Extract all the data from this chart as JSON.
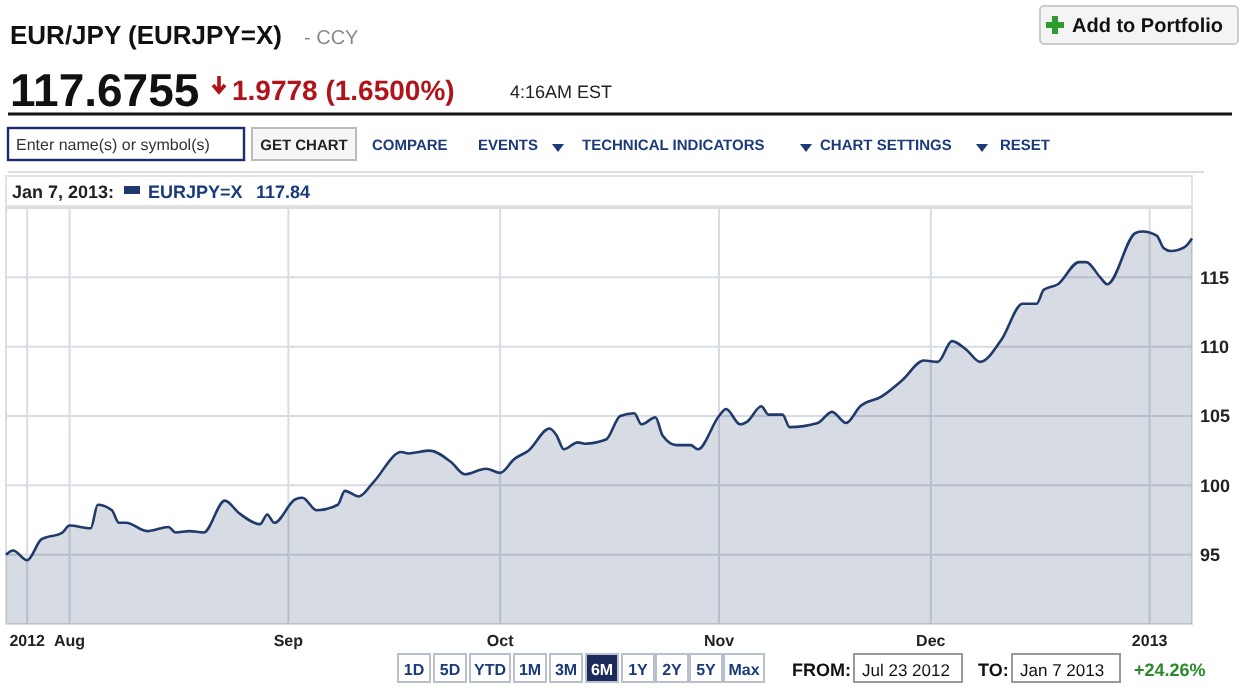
{
  "chart_data": {
    "type": "area",
    "title": "EUR/JPY (EURJPY=X)",
    "subtitle": "- CCY",
    "legend_title": "Jan 7, 2013:",
    "annotations": [
      "117.6755",
      "1.9778 (1.6500%)",
      "4:16AM EST",
      "Add to Portfolio",
      "Enter name(s) or symbol(s)",
      "GET CHART",
      "COMPARE",
      "EVENTS",
      "TECHNICAL INDICATORS",
      "CHART SETTINGS",
      "RESET",
      "1D",
      "5D",
      "YTD",
      "1M",
      "3M",
      "6M",
      "1Y",
      "2Y",
      "5Y",
      "Max",
      "FROM:",
      "Jul 23 2012",
      "TO:",
      "Jan 7 2013",
      "+24.26%",
      "117.84"
    ],
    "x": [
      "2012-07-23",
      "2012-07-24",
      "2012-07-26",
      "2012-07-28",
      "2012-07-31",
      "2012-08-01",
      "2012-08-04",
      "2012-08-05",
      "2012-08-07",
      "2012-08-08",
      "2012-08-09",
      "2012-08-12",
      "2012-08-15",
      "2012-08-16",
      "2012-08-18",
      "2012-08-20",
      "2012-08-23",
      "2012-08-25",
      "2012-08-28",
      "2012-08-29",
      "2012-08-30",
      "2012-09-02",
      "2012-09-03",
      "2012-09-05",
      "2012-09-08",
      "2012-09-09",
      "2012-09-11",
      "2012-09-13",
      "2012-09-17",
      "2012-09-18",
      "2012-09-21",
      "2012-09-24",
      "2012-09-26",
      "2012-09-29",
      "2012-10-01",
      "2012-10-03",
      "2012-10-05",
      "2012-10-08",
      "2012-10-09",
      "2012-10-10",
      "2012-10-12",
      "2012-10-13",
      "2012-10-16",
      "2012-10-18",
      "2012-10-20",
      "2012-10-21",
      "2012-10-23",
      "2012-10-24",
      "2012-10-26",
      "2012-10-28",
      "2012-10-29",
      "2012-11-01",
      "2012-11-02",
      "2012-11-04",
      "2012-11-05",
      "2012-11-07",
      "2012-11-08",
      "2012-11-10",
      "2012-11-11",
      "2012-11-15",
      "2012-11-17",
      "2012-11-19",
      "2012-11-21",
      "2012-11-24",
      "2012-11-27",
      "2012-11-30",
      "2012-12-02",
      "2012-12-04",
      "2012-12-06",
      "2012-12-08",
      "2012-12-11",
      "2012-12-14",
      "2012-12-16",
      "2012-12-17",
      "2012-12-19",
      "2012-12-22",
      "2012-12-23",
      "2012-12-25",
      "2012-12-26",
      "2012-12-30",
      "2012-12-31",
      "2013-01-02",
      "2013-01-03",
      "2013-01-04",
      "2013-01-06",
      "2013-01-07"
    ],
    "series": [
      {
        "name": "EURJPY=X",
        "color": "#1f3a6b",
        "values": [
          95.0,
          95.3,
          94.6,
          96.1,
          96.6,
          97.1,
          96.9,
          98.6,
          98.2,
          97.3,
          97.3,
          96.7,
          97.0,
          96.6,
          96.7,
          96.6,
          98.9,
          98.0,
          97.2,
          97.9,
          97.3,
          99.0,
          99.1,
          98.2,
          98.6,
          99.6,
          99.2,
          100.2,
          102.4,
          102.3,
          102.5,
          101.7,
          100.8,
          101.2,
          100.9,
          101.9,
          102.5,
          104.1,
          103.6,
          102.6,
          103.1,
          103.0,
          103.3,
          105.0,
          105.2,
          104.4,
          104.9,
          103.6,
          102.9,
          102.9,
          102.6,
          105.0,
          105.5,
          104.4,
          104.6,
          105.7,
          105.1,
          105.1,
          104.2,
          104.5,
          105.3,
          104.5,
          105.7,
          106.4,
          107.6,
          109.0,
          108.9,
          110.4,
          109.8,
          108.9,
          110.5,
          113.1,
          113.1,
          114.1,
          114.5,
          116.1,
          116.1,
          115.0,
          114.5,
          118.2,
          118.3,
          118.0,
          117.1,
          116.9,
          117.2,
          117.8
        ]
      }
    ],
    "xlim": [
      "2012-07-23",
      "2013-01-07"
    ],
    "xticks": [
      {
        "value": "2012-07-26",
        "label": "2012"
      },
      {
        "value": "2012-08-01",
        "label": "Aug"
      },
      {
        "value": "2012-09-01",
        "label": "Sep"
      },
      {
        "value": "2012-10-01",
        "label": "Oct"
      },
      {
        "value": "2012-11-01",
        "label": "Nov"
      },
      {
        "value": "2012-12-01",
        "label": "Dec"
      },
      {
        "value": "2013-01-01",
        "label": "2013"
      }
    ],
    "ylim": [
      90,
      120
    ],
    "yticks": [
      95,
      100,
      105,
      110,
      115
    ],
    "grid": true,
    "legend": "top left"
  }
}
